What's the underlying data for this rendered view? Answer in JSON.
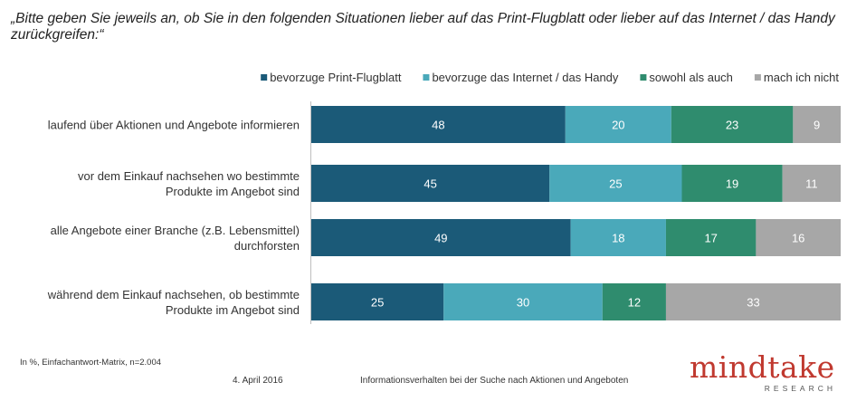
{
  "question": "„Bitte geben Sie jeweils an, ob Sie in den folgenden Situationen lieber auf das Print-Flugblatt oder lieber auf das Internet / das Handy zurückgreifen:“",
  "chart_data": {
    "type": "bar",
    "orientation": "horizontal",
    "stacked": true,
    "categories": [
      [
        "laufend über Aktionen und Angebote informieren"
      ],
      [
        "vor dem Einkauf nachsehen wo bestimmte",
        "Produkte im Angebot sind"
      ],
      [
        "alle Angebote einer Branche (z.B. Lebensmittel)",
        "durchforsten"
      ],
      [
        "während dem Einkauf nachsehen, ob bestimmte",
        "Produkte im Angebot sind"
      ]
    ],
    "series": [
      {
        "name": "bevorzuge Print-Flugblatt",
        "color": "#1b5a78",
        "values": [
          48,
          45,
          49,
          25
        ]
      },
      {
        "name": "bevorzuge das Internet / das Handy",
        "color": "#4aa9ba",
        "values": [
          20,
          25,
          18,
          30
        ]
      },
      {
        "name": "sowohl als auch",
        "color": "#2f8c6e",
        "values": [
          23,
          19,
          17,
          12
        ]
      },
      {
        "name": "mach ich nicht",
        "color": "#a7a7a7",
        "values": [
          9,
          11,
          16,
          33
        ]
      }
    ],
    "legend": "top-right",
    "grid": false
  },
  "footnote": "In %, Einfachantwort-Matrix, n=2.004",
  "footer": {
    "date": "4. April 2016",
    "title": "Informationsverhalten bei der Suche nach Aktionen und Angeboten"
  },
  "logo": {
    "word": "mindtake",
    "sub": "RESEARCH"
  }
}
